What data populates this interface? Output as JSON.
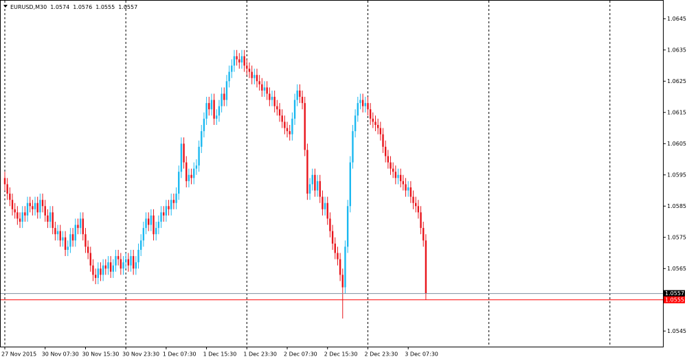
{
  "chart_data": {
    "type": "candlestick",
    "title": "EURUSD,M30",
    "categories": [
      "27 Nov 2015",
      null,
      null,
      null,
      null,
      null,
      null,
      null,
      null,
      null,
      null,
      null,
      null,
      null,
      null,
      null,
      "30 Nov 07:30",
      null,
      null,
      null,
      null,
      null,
      null,
      null,
      null,
      null,
      null,
      null,
      null,
      null,
      null,
      null,
      "30 Nov 15:30",
      null,
      null,
      null,
      null,
      null,
      null,
      null,
      null,
      null,
      null,
      null,
      null,
      null,
      null,
      null,
      "30 Nov 23:30",
      null,
      null,
      null,
      null,
      null,
      null,
      null,
      null,
      null,
      null,
      null,
      null,
      null,
      null,
      null,
      "1 Dec 07:30",
      null,
      null,
      null,
      null,
      null,
      null,
      null,
      null,
      null,
      null,
      null,
      null,
      null,
      null,
      null,
      "1 Dec 15:30",
      null,
      null,
      null,
      null,
      null,
      null,
      null,
      null,
      null,
      null,
      null,
      null,
      null,
      null,
      null,
      "1 Dec 23:30",
      null,
      null,
      null,
      null,
      null,
      null,
      null,
      null,
      null,
      null,
      null,
      null,
      null,
      null,
      null,
      "2 Dec 07:30",
      null,
      null,
      null,
      null,
      null,
      null,
      null,
      null,
      null,
      null,
      null,
      null,
      null,
      null,
      null,
      "2 Dec 15:30",
      null,
      null,
      null,
      null,
      null,
      null,
      null,
      null,
      null,
      null,
      null,
      null,
      null,
      null,
      null,
      "2 Dec 23:30",
      null,
      null,
      null,
      null,
      null,
      null,
      null,
      null,
      null,
      null,
      null,
      null,
      null,
      null,
      null,
      "3 Dec 07:30",
      null,
      null,
      null,
      null,
      null,
      null,
      null
    ],
    "open": [
      1.0594,
      1.0592,
      1.0589,
      1.0587,
      1.0584,
      1.0583,
      1.0581,
      1.058,
      1.0583,
      1.0582,
      1.0586,
      1.0585,
      1.0584,
      1.0586,
      1.0583,
      1.0587,
      1.0585,
      1.0582,
      1.058,
      1.0583,
      1.0578,
      1.0576,
      1.0577,
      1.0574,
      1.0575,
      1.0571,
      1.0572,
      1.0576,
      1.0574,
      1.0579,
      1.0578,
      1.0581,
      1.0576,
      1.0572,
      1.057,
      1.0566,
      1.0563,
      1.0562,
      1.0565,
      1.0563,
      1.0566,
      1.0565,
      1.0567,
      1.0564,
      1.0566,
      1.0569,
      1.0568,
      1.0565,
      1.0567,
      1.0568,
      1.0566,
      1.0569,
      1.0565,
      1.0567,
      1.0571,
      1.0574,
      1.0578,
      1.0581,
      1.0579,
      1.0582,
      1.0576,
      1.0578,
      1.058,
      1.0583,
      1.0582,
      1.0585,
      1.0584,
      1.0587,
      1.0586,
      1.0589,
      1.0596,
      1.0605,
      1.0599,
      1.0593,
      1.0595,
      1.0594,
      1.0597,
      1.0598,
      1.0604,
      1.0609,
      1.0613,
      1.0618,
      1.0616,
      1.0619,
      1.0613,
      1.0614,
      1.0617,
      1.0621,
      1.0619,
      1.0625,
      1.0628,
      1.063,
      1.0633,
      1.0632,
      1.0631,
      1.0633,
      1.063,
      1.0629,
      1.0628,
      1.0626,
      1.0627,
      1.0625,
      1.0624,
      1.0622,
      1.0623,
      1.0621,
      1.0619,
      1.062,
      1.0617,
      1.0616,
      1.0614,
      1.0612,
      1.061,
      1.0609,
      1.0608,
      1.0613,
      1.0619,
      1.0622,
      1.062,
      1.0618,
      1.0603,
      1.0589,
      1.0592,
      1.0595,
      1.059,
      1.0593,
      1.0588,
      1.0584,
      1.0586,
      1.0581,
      1.0577,
      1.0573,
      1.057,
      1.0568,
      1.0563,
      1.0559,
      1.0572,
      1.0585,
      1.0599,
      1.0609,
      1.0614,
      1.0618,
      1.0619,
      1.0617,
      1.0618,
      1.0616,
      1.0613,
      1.0612,
      1.0611,
      1.061,
      1.0608,
      1.0604,
      1.0601,
      1.0599,
      1.0597,
      1.0596,
      1.0594,
      1.0595,
      1.0593,
      1.0592,
      1.059,
      1.0591,
      1.0588,
      1.0586,
      1.0585,
      1.0583,
      1.0578,
      1.0574
    ],
    "high": [
      1.0596,
      1.0594,
      1.0591,
      1.0589,
      1.0586,
      1.0585,
      1.0583,
      1.0585,
      1.0585,
      1.0588,
      1.0588,
      1.0587,
      1.0588,
      1.0588,
      1.0589,
      1.0589,
      1.0587,
      1.0584,
      1.0585,
      1.0585,
      1.058,
      1.0579,
      1.0579,
      1.0577,
      1.0577,
      1.0574,
      1.0578,
      1.0578,
      1.0581,
      1.0581,
      1.0583,
      1.0583,
      1.0578,
      1.0574,
      1.0572,
      1.0568,
      1.0565,
      1.0567,
      1.0567,
      1.0568,
      1.0568,
      1.0569,
      1.0569,
      1.0568,
      1.0571,
      1.0571,
      1.057,
      1.0569,
      1.057,
      1.057,
      1.0571,
      1.0571,
      1.0569,
      1.0573,
      1.0576,
      1.058,
      1.0583,
      1.0583,
      1.0584,
      1.0584,
      1.058,
      1.0582,
      1.0585,
      1.0585,
      1.0587,
      1.0587,
      1.0589,
      1.0589,
      1.0591,
      1.0598,
      1.0607,
      1.0607,
      1.0601,
      1.0597,
      1.0597,
      1.0599,
      1.06,
      1.0606,
      1.0611,
      1.0615,
      1.062,
      1.062,
      1.0621,
      1.0621,
      1.0616,
      1.0619,
      1.0623,
      1.0623,
      1.0627,
      1.063,
      1.0632,
      1.0635,
      1.0635,
      1.0634,
      1.0635,
      1.0635,
      1.0632,
      1.0631,
      1.063,
      1.0629,
      1.0629,
      1.0627,
      1.0626,
      1.0625,
      1.0625,
      1.0623,
      1.0622,
      1.0622,
      1.0619,
      1.0618,
      1.0616,
      1.0614,
      1.0612,
      1.0611,
      1.0615,
      1.0621,
      1.0624,
      1.0624,
      1.0622,
      1.062,
      1.0605,
      1.0594,
      1.0597,
      1.0597,
      1.0595,
      1.0595,
      1.059,
      1.0588,
      1.0588,
      1.0583,
      1.0579,
      1.0575,
      1.0572,
      1.057,
      1.0565,
      1.0574,
      1.0587,
      1.0601,
      1.0611,
      1.0616,
      1.062,
      1.0621,
      1.0621,
      1.062,
      1.062,
      1.0618,
      1.0615,
      1.0614,
      1.0613,
      1.0612,
      1.061,
      1.0606,
      1.0603,
      1.0601,
      1.0599,
      1.0598,
      1.0597,
      1.0597,
      1.0595,
      1.0594,
      1.0593,
      1.0593,
      1.059,
      1.0588,
      1.0587,
      1.0585,
      1.058,
      1.0576
    ],
    "low": [
      1.059,
      1.0587,
      1.0585,
      1.0582,
      1.0581,
      1.0579,
      1.0578,
      1.0578,
      1.058,
      1.058,
      1.0583,
      1.0582,
      1.0582,
      1.0581,
      1.0581,
      1.0583,
      1.058,
      1.0578,
      1.0578,
      1.0576,
      1.0574,
      1.0574,
      1.0572,
      1.0572,
      1.0569,
      1.0569,
      1.057,
      1.0572,
      1.0572,
      1.0576,
      1.0576,
      1.0574,
      1.057,
      1.0568,
      1.0564,
      1.0561,
      1.056,
      1.056,
      1.0561,
      1.0561,
      1.0563,
      1.0563,
      1.0562,
      1.0562,
      1.0564,
      1.0566,
      1.0563,
      1.0563,
      1.0565,
      1.0564,
      1.0564,
      1.0563,
      1.0563,
      1.0565,
      1.0569,
      1.0572,
      1.0576,
      1.0577,
      1.0577,
      1.0574,
      1.0574,
      1.0576,
      1.0578,
      1.058,
      1.058,
      1.0582,
      1.0582,
      1.0584,
      1.0584,
      1.0587,
      1.0594,
      1.0597,
      1.0591,
      1.0591,
      1.0592,
      1.0592,
      1.0595,
      1.0596,
      1.0602,
      1.0607,
      1.0611,
      1.0614,
      1.0614,
      1.0611,
      1.0611,
      1.0612,
      1.0615,
      1.0617,
      1.0617,
      1.0623,
      1.0626,
      1.0628,
      1.063,
      1.0629,
      1.0629,
      1.0628,
      1.0627,
      1.0626,
      1.0624,
      1.0624,
      1.0623,
      1.0622,
      1.062,
      1.062,
      1.0619,
      1.0617,
      1.0617,
      1.0615,
      1.0614,
      1.0612,
      1.061,
      1.0608,
      1.0607,
      1.0606,
      1.0606,
      1.0611,
      1.0617,
      1.0618,
      1.0616,
      1.0601,
      1.0587,
      1.0587,
      1.059,
      1.0588,
      1.0588,
      1.0586,
      1.0582,
      1.0582,
      1.0579,
      1.0575,
      1.0571,
      1.0568,
      1.0566,
      1.0561,
      1.0549,
      1.0557,
      1.057,
      1.0583,
      1.0597,
      1.0607,
      1.0612,
      1.0616,
      1.0615,
      1.0615,
      1.0614,
      1.0611,
      1.061,
      1.0609,
      1.0608,
      1.0606,
      1.0602,
      1.0599,
      1.0597,
      1.0595,
      1.0594,
      1.0592,
      1.0592,
      1.0591,
      1.059,
      1.0588,
      1.0588,
      1.0586,
      1.0584,
      1.0583,
      1.0581,
      1.0576,
      1.0572,
      1.0555
    ],
    "close": [
      1.0592,
      1.0589,
      1.0587,
      1.0584,
      1.0583,
      1.0581,
      1.058,
      1.0583,
      1.0582,
      1.0586,
      1.0585,
      1.0584,
      1.0586,
      1.0583,
      1.0587,
      1.0585,
      1.0582,
      1.058,
      1.0583,
      1.0578,
      1.0576,
      1.0577,
      1.0574,
      1.0575,
      1.0571,
      1.0572,
      1.0576,
      1.0574,
      1.0579,
      1.0578,
      1.0581,
      1.0576,
      1.0572,
      1.057,
      1.0566,
      1.0563,
      1.0562,
      1.0565,
      1.0563,
      1.0566,
      1.0565,
      1.0567,
      1.0564,
      1.0566,
      1.0569,
      1.0568,
      1.0565,
      1.0567,
      1.0568,
      1.0566,
      1.0569,
      1.0565,
      1.0567,
      1.0571,
      1.0574,
      1.0578,
      1.0581,
      1.0579,
      1.0582,
      1.0576,
      1.0578,
      1.058,
      1.0583,
      1.0582,
      1.0585,
      1.0584,
      1.0587,
      1.0586,
      1.0589,
      1.0596,
      1.0605,
      1.0599,
      1.0593,
      1.0595,
      1.0594,
      1.0597,
      1.0598,
      1.0604,
      1.0609,
      1.0613,
      1.0618,
      1.0616,
      1.0619,
      1.0613,
      1.0614,
      1.0617,
      1.0621,
      1.0619,
      1.0625,
      1.0628,
      1.063,
      1.0633,
      1.0632,
      1.0631,
      1.0633,
      1.063,
      1.0629,
      1.0628,
      1.0626,
      1.0627,
      1.0625,
      1.0624,
      1.0622,
      1.0623,
      1.0621,
      1.0619,
      1.062,
      1.0617,
      1.0616,
      1.0614,
      1.0612,
      1.061,
      1.0609,
      1.0608,
      1.0613,
      1.0619,
      1.0622,
      1.062,
      1.0618,
      1.0603,
      1.0589,
      1.0592,
      1.0595,
      1.059,
      1.0593,
      1.0588,
      1.0584,
      1.0586,
      1.0581,
      1.0577,
      1.0573,
      1.057,
      1.0568,
      1.0563,
      1.0559,
      1.0572,
      1.0585,
      1.0599,
      1.0609,
      1.0614,
      1.0618,
      1.0619,
      1.0617,
      1.0618,
      1.0616,
      1.0613,
      1.0612,
      1.0611,
      1.061,
      1.0608,
      1.0604,
      1.0601,
      1.0599,
      1.0597,
      1.0596,
      1.0594,
      1.0595,
      1.0593,
      1.0592,
      1.059,
      1.0591,
      1.0588,
      1.0586,
      1.0585,
      1.0583,
      1.0578,
      1.0574,
      1.0557
    ],
    "up_color": "#1ab8f0",
    "down_color": "#e8141b",
    "ylim": [
      1.054,
      1.0651
    ],
    "yticks": [
      1.0645,
      1.0635,
      1.0625,
      1.0615,
      1.0605,
      1.0595,
      1.0585,
      1.0575,
      1.0565,
      1.0545
    ],
    "price_lines": [
      {
        "value": 1.0557,
        "color": "#000000",
        "line_color": "#7f8f9f"
      },
      {
        "value": 1.0555,
        "color": "#ff0000",
        "line_color": "#ff0000"
      }
    ]
  }
}
